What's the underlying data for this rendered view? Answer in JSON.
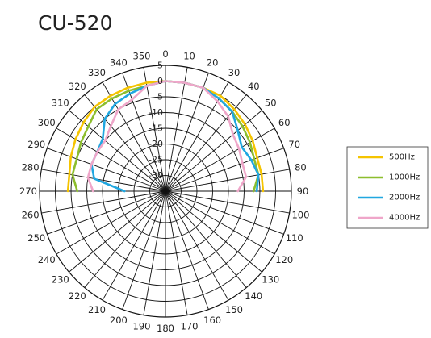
{
  "chart_data": {
    "type": "line",
    "subtype": "polar",
    "title": "CU-520",
    "angle_ticks": [
      "0",
      "10",
      "20",
      "30",
      "40",
      "50",
      "60",
      "70",
      "80",
      "90",
      "100",
      "110",
      "120",
      "130",
      "140",
      "150",
      "160",
      "170",
      "180",
      "190",
      "200",
      "210",
      "220",
      "230",
      "240",
      "250",
      "260",
      "270",
      "280",
      "290",
      "300",
      "310",
      "320",
      "330",
      "340",
      "350"
    ],
    "radial_ticks": [
      "5",
      "0",
      "-5",
      "-10",
      "-15",
      "-20",
      "-25",
      "-30"
    ],
    "rlim": [
      -35,
      5
    ],
    "legend_position": "right",
    "series": [
      {
        "name": "500Hz",
        "color": "#F5C400",
        "angles": [
          270,
          280,
          290,
          300,
          310,
          320,
          330,
          340,
          350,
          0,
          10,
          20,
          30,
          40,
          50,
          60,
          70,
          80,
          90
        ],
        "values": [
          -4,
          -4,
          -3,
          -2,
          -1,
          0,
          0,
          0,
          0,
          0,
          0,
          0,
          0,
          -1,
          -2,
          -3,
          -4,
          -4,
          -4
        ]
      },
      {
        "name": "1000Hz",
        "color": "#8DBE2E",
        "angles": [
          270,
          280,
          290,
          300,
          310,
          320,
          330,
          340,
          350,
          0,
          10,
          20,
          30,
          40,
          50,
          60,
          70,
          80,
          90
        ],
        "values": [
          -7,
          -5,
          -5,
          -4,
          -3,
          -1,
          -1,
          -1,
          -1,
          0,
          0,
          0,
          -1,
          -2,
          -3,
          -4,
          -5,
          -5,
          -7
        ]
      },
      {
        "name": "2000Hz",
        "color": "#21A7E0",
        "angles": [
          270,
          280,
          290,
          300,
          310,
          320,
          330,
          340,
          350,
          0,
          10,
          20,
          30,
          40,
          50,
          60,
          70,
          80,
          90
        ],
        "values": [
          -22,
          -12,
          -10,
          -10,
          -9,
          -5,
          -3,
          -2,
          -1,
          0,
          0,
          0,
          -1,
          -2,
          -5,
          -7,
          -6,
          -5,
          -6
        ]
      },
      {
        "name": "4000Hz",
        "color": "#EFA6C9",
        "angles": [
          270,
          280,
          290,
          300,
          310,
          320,
          330,
          340,
          350,
          0,
          10,
          20,
          30,
          40,
          50,
          60,
          70,
          80,
          90
        ],
        "values": [
          -12,
          -10,
          -10,
          -10,
          -10,
          -8,
          -5,
          -4,
          -1,
          0,
          0,
          0,
          -2,
          -4,
          -7,
          -8,
          -9,
          -9,
          -12
        ]
      }
    ]
  }
}
